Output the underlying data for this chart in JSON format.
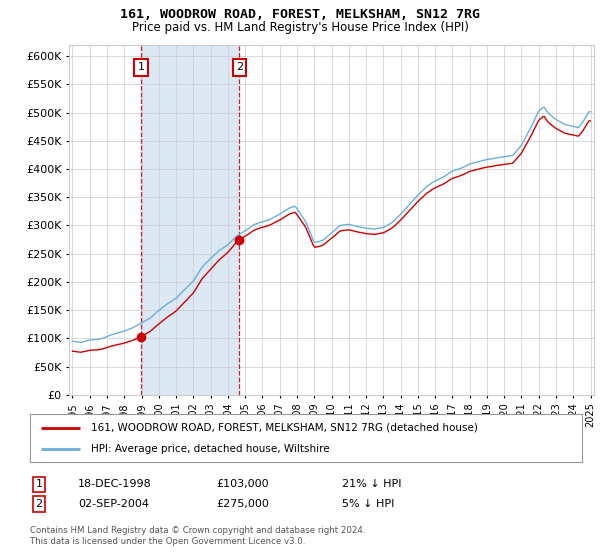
{
  "title_line1": "161, WOODROW ROAD, FOREST, MELKSHAM, SN12 7RG",
  "title_line2": "Price paid vs. HM Land Registry's House Price Index (HPI)",
  "ylim": [
    0,
    620000
  ],
  "yticks": [
    0,
    50000,
    100000,
    150000,
    200000,
    250000,
    300000,
    350000,
    400000,
    450000,
    500000,
    550000,
    600000
  ],
  "xmin_year": 1995,
  "xmax_year": 2025,
  "xtick_years": [
    1995,
    1996,
    1997,
    1998,
    1999,
    2000,
    2001,
    2002,
    2003,
    2004,
    2005,
    2006,
    2007,
    2008,
    2009,
    2010,
    2011,
    2012,
    2013,
    2014,
    2015,
    2016,
    2017,
    2018,
    2019,
    2020,
    2021,
    2022,
    2023,
    2024,
    2025
  ],
  "sale1_year": 1998.96,
  "sale1_price": 103000,
  "sale2_year": 2004.67,
  "sale2_price": 275000,
  "shade_color": "#dce9f5",
  "hpi_color": "#6daed9",
  "price_color": "#cc0000",
  "grid_color": "#cccccc",
  "background_color": "#ffffff",
  "legend_label1": "161, WOODROW ROAD, FOREST, MELKSHAM, SN12 7RG (detached house)",
  "legend_label2": "HPI: Average price, detached house, Wiltshire",
  "table_row1_date": "18-DEC-1998",
  "table_row1_price": "£103,000",
  "table_row1_hpi": "21% ↓ HPI",
  "table_row2_date": "02-SEP-2004",
  "table_row2_price": "£275,000",
  "table_row2_hpi": "5% ↓ HPI",
  "footnote": "Contains HM Land Registry data © Crown copyright and database right 2024.\nThis data is licensed under the Open Government Licence v3.0."
}
